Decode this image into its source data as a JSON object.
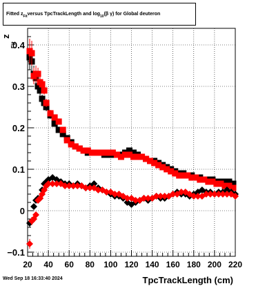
{
  "title": {
    "prefix": "Fitted  z",
    "sub": "Fit",
    "middle": "  versus TpcTrackLength and log",
    "sub2": "10",
    "suffix": "(β  γ) for Global deuteron"
  },
  "timestamp": "Wed Sep 18 16:33:40 2024",
  "chart_data": {
    "type": "scatter",
    "title": "Fitted  zFit  versus TpcTrackLength and log10(β γ) for Global deuteron",
    "xlabel": "TpcTrackLength (cm)",
    "ylabel": "z",
    "ylabel_sub": "Fit",
    "xlim": [
      20,
      220
    ],
    "ylim": [
      -0.11,
      0.44
    ],
    "xticks": [
      20,
      40,
      60,
      80,
      100,
      120,
      140,
      160,
      180,
      200,
      220
    ],
    "xtick_labels": [
      "20",
      "40",
      "60",
      "80",
      "100",
      "120",
      "140",
      "160",
      "180",
      "200",
      "220"
    ],
    "yticks": [
      -0.1,
      0,
      0.1,
      0.2,
      0.3,
      0.4
    ],
    "ytick_labels": [
      "−0.1",
      "0",
      "0.1",
      "0.2",
      "0.3",
      "0.4"
    ],
    "grid": true,
    "series": [
      {
        "marker": "square",
        "color": "#000000",
        "x": [
          22,
          24,
          26,
          28,
          30,
          32,
          34,
          36,
          38,
          42,
          46,
          50,
          54,
          58,
          62,
          66,
          70,
          74,
          78,
          82,
          86,
          90,
          94,
          98,
          102,
          106,
          110,
          114,
          118,
          122,
          126,
          130,
          134,
          138,
          142,
          146,
          150,
          154,
          158,
          162,
          166,
          170,
          174,
          178,
          182,
          186,
          190,
          194,
          198,
          202,
          206,
          210,
          214,
          218
        ],
        "y": [
          0.37,
          0.36,
          0.33,
          0.32,
          0.3,
          0.29,
          0.27,
          0.26,
          0.25,
          0.23,
          0.21,
          0.195,
          0.185,
          0.175,
          0.165,
          0.155,
          0.15,
          0.145,
          0.14,
          0.14,
          0.14,
          0.14,
          0.135,
          0.135,
          0.135,
          0.135,
          0.135,
          0.14,
          0.145,
          0.14,
          0.135,
          0.13,
          0.125,
          0.12,
          0.12,
          0.115,
          0.11,
          0.105,
          0.1,
          0.095,
          0.09,
          0.09,
          0.085,
          0.085,
          0.08,
          0.08,
          0.075,
          0.075,
          0.075,
          0.07,
          0.07,
          0.07,
          0.07,
          0.065
        ],
        "err": [
          0.03,
          0.03,
          0.02,
          0.02,
          0.015,
          0.012,
          0.01,
          0.01,
          0.01,
          0.008,
          0.007,
          0.006,
          0.006,
          0.005,
          0.005,
          0.005,
          0.005,
          0.005,
          0.005,
          0.005,
          0.005,
          0.005,
          0.005,
          0.005,
          0.005,
          0.005,
          0.005,
          0.005,
          0.005,
          0.005,
          0.005,
          0.005,
          0.005,
          0.005,
          0.005,
          0.005,
          0.005,
          0.005,
          0.005,
          0.005,
          0.005,
          0.005,
          0.005,
          0.005,
          0.005,
          0.005,
          0.005,
          0.005,
          0.005,
          0.005,
          0.005,
          0.005,
          0.005,
          0.005
        ]
      },
      {
        "marker": "square",
        "color": "#ff0000",
        "x": [
          22,
          24,
          26,
          28,
          30,
          32,
          34,
          36,
          38,
          42,
          46,
          50,
          54,
          58,
          62,
          66,
          70,
          74,
          78,
          82,
          86,
          90,
          94,
          98,
          102,
          106,
          110,
          114,
          118,
          122,
          126,
          130,
          134,
          138,
          142,
          146,
          150,
          154,
          158,
          162,
          166,
          170,
          174,
          178,
          182,
          186,
          190,
          194,
          198,
          202,
          206,
          210,
          214,
          218
        ],
        "y": [
          0.385,
          0.38,
          0.325,
          0.33,
          0.33,
          0.31,
          0.305,
          0.29,
          0.26,
          0.235,
          0.225,
          0.215,
          0.195,
          0.17,
          0.16,
          0.155,
          0.15,
          0.145,
          0.145,
          0.14,
          0.14,
          0.14,
          0.14,
          0.14,
          0.14,
          0.135,
          0.13,
          0.135,
          0.135,
          0.13,
          0.13,
          0.13,
          0.125,
          0.12,
          0.115,
          0.11,
          0.105,
          0.1,
          0.095,
          0.09,
          0.085,
          0.085,
          0.085,
          0.08,
          0.08,
          0.075,
          0.075,
          0.07,
          0.07,
          0.065,
          0.065,
          0.06,
          0.06,
          0.055
        ],
        "err": [
          0.03,
          0.03,
          0.02,
          0.02,
          0.015,
          0.012,
          0.01,
          0.01,
          0.01,
          0.008,
          0.007,
          0.006,
          0.006,
          0.005,
          0.005,
          0.005,
          0.005,
          0.005,
          0.005,
          0.005,
          0.005,
          0.005,
          0.005,
          0.005,
          0.005,
          0.005,
          0.005,
          0.005,
          0.005,
          0.005,
          0.005,
          0.005,
          0.005,
          0.005,
          0.005,
          0.005,
          0.005,
          0.005,
          0.005,
          0.005,
          0.005,
          0.005,
          0.005,
          0.005,
          0.005,
          0.005,
          0.005,
          0.005,
          0.005,
          0.005,
          0.005,
          0.005,
          0.005,
          0.005
        ]
      },
      {
        "marker": "diamond",
        "color": "#000000",
        "x": [
          22,
          24,
          26,
          28,
          30,
          32,
          34,
          36,
          38,
          40,
          44,
          48,
          52,
          56,
          60,
          64,
          68,
          72,
          76,
          80,
          84,
          88,
          92,
          96,
          100,
          104,
          108,
          112,
          116,
          120,
          124,
          128,
          132,
          136,
          140,
          144,
          148,
          152,
          156,
          160,
          164,
          168,
          172,
          176,
          180,
          184,
          188,
          192,
          196,
          200,
          204,
          208,
          212,
          216,
          220
        ],
        "y": [
          -0.03,
          -0.025,
          0.01,
          0.025,
          0.03,
          0.03,
          0.05,
          0.065,
          0.07,
          0.075,
          0.08,
          0.075,
          0.07,
          0.065,
          0.065,
          0.06,
          0.065,
          0.06,
          0.055,
          0.06,
          0.065,
          0.055,
          0.05,
          0.045,
          0.04,
          0.035,
          0.035,
          0.03,
          0.02,
          0.015,
          0.02,
          0.025,
          0.03,
          0.025,
          0.03,
          0.035,
          0.03,
          0.03,
          0.035,
          0.04,
          0.045,
          0.04,
          0.04,
          0.035,
          0.04,
          0.045,
          0.05,
          0.045,
          0.045,
          0.04,
          0.045,
          0.045,
          0.05,
          0.045,
          0.04
        ],
        "err": [
          0.01,
          0.008,
          0.007,
          0.006,
          0.006,
          0.005,
          0.005,
          0.005,
          0.005,
          0.005,
          0.004,
          0.004,
          0.004,
          0.004,
          0.004,
          0.004,
          0.004,
          0.004,
          0.004,
          0.004,
          0.004,
          0.004,
          0.004,
          0.004,
          0.004,
          0.004,
          0.004,
          0.004,
          0.004,
          0.004,
          0.004,
          0.004,
          0.004,
          0.004,
          0.004,
          0.004,
          0.004,
          0.004,
          0.004,
          0.004,
          0.004,
          0.004,
          0.004,
          0.004,
          0.004,
          0.004,
          0.004,
          0.004,
          0.004,
          0.004,
          0.004,
          0.004,
          0.004,
          0.004,
          0.004
        ]
      },
      {
        "marker": "diamond",
        "color": "#ff0000",
        "x": [
          22,
          24,
          26,
          28,
          30,
          32,
          34,
          36,
          38,
          40,
          44,
          48,
          52,
          56,
          60,
          64,
          68,
          72,
          76,
          80,
          84,
          88,
          92,
          96,
          100,
          104,
          108,
          112,
          116,
          120,
          124,
          128,
          132,
          136,
          140,
          144,
          148,
          152,
          156,
          160,
          164,
          168,
          172,
          176,
          180,
          184,
          188,
          192,
          196,
          200,
          204,
          208,
          212,
          216,
          220
        ],
        "y": [
          -0.08,
          -0.025,
          -0.02,
          -0.01,
          0.025,
          0.03,
          0.04,
          0.05,
          0.06,
          0.065,
          0.065,
          0.065,
          0.065,
          0.06,
          0.06,
          0.06,
          0.06,
          0.06,
          0.055,
          0.055,
          0.055,
          0.05,
          0.05,
          0.045,
          0.045,
          0.04,
          0.04,
          0.035,
          0.03,
          0.03,
          0.025,
          0.025,
          0.03,
          0.03,
          0.03,
          0.035,
          0.035,
          0.035,
          0.035,
          0.04,
          0.04,
          0.045,
          0.045,
          0.04,
          0.035,
          0.035,
          0.035,
          0.04,
          0.04,
          0.04,
          0.04,
          0.04,
          0.04,
          0.04,
          0.035
        ],
        "err": [
          0.012,
          0.01,
          0.008,
          0.006,
          0.006,
          0.005,
          0.005,
          0.005,
          0.005,
          0.005,
          0.004,
          0.004,
          0.004,
          0.004,
          0.004,
          0.004,
          0.004,
          0.004,
          0.004,
          0.004,
          0.004,
          0.004,
          0.004,
          0.004,
          0.004,
          0.004,
          0.004,
          0.004,
          0.004,
          0.004,
          0.004,
          0.004,
          0.004,
          0.004,
          0.004,
          0.004,
          0.004,
          0.004,
          0.004,
          0.004,
          0.004,
          0.004,
          0.004,
          0.004,
          0.004,
          0.004,
          0.004,
          0.004,
          0.004,
          0.004,
          0.004,
          0.004,
          0.004,
          0.004,
          0.004
        ]
      }
    ]
  }
}
